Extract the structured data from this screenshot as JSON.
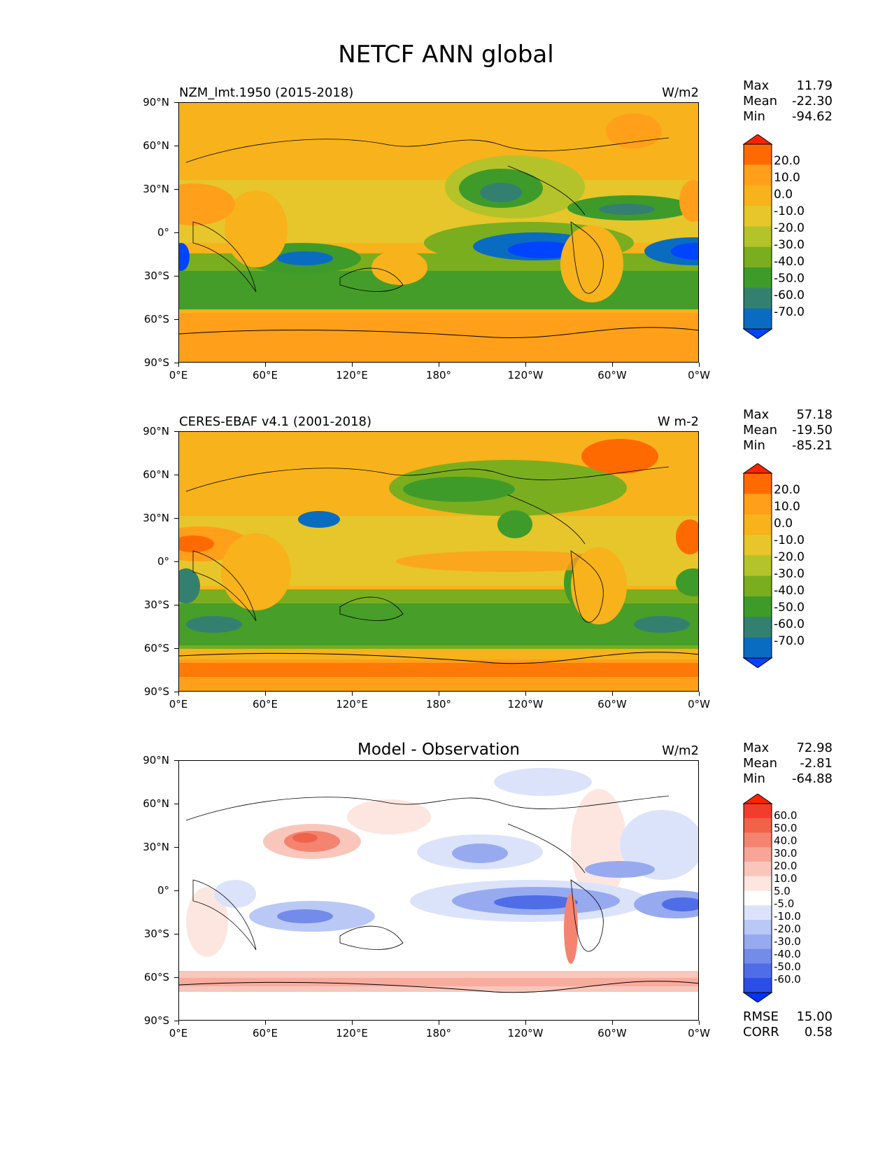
{
  "figure_title": "NETCF ANN global",
  "axes": {
    "lat_ticks": [
      "90°N",
      "60°N",
      "30°N",
      "0°",
      "30°S",
      "60°S",
      "90°S"
    ],
    "lon_ticks": [
      "0°E",
      "60°E",
      "120°E",
      "180°",
      "120°W",
      "60°W",
      "0°W"
    ]
  },
  "panels": [
    {
      "title": "NZM_lmt.1950 (2015-2018)",
      "units": "W/m2",
      "stats": [
        {
          "label": "Max",
          "value": "11.79"
        },
        {
          "label": "Mean",
          "value": "-22.30"
        },
        {
          "label": "Min",
          "value": "-94.62"
        }
      ],
      "colorbar": {
        "labels": [
          "20.0",
          "10.0",
          "0.0",
          "-10.0",
          "-20.0",
          "-30.0",
          "-40.0",
          "-50.0",
          "-60.0",
          "-70.0"
        ],
        "colors": [
          "#ff2200",
          "#ff6a00",
          "#ff9f1a",
          "#f7b21c",
          "#e6c62a",
          "#b4c32a",
          "#7aae1e",
          "#3e9b2a",
          "#348070",
          "#0a6cc0",
          "#0044ff"
        ]
      }
    },
    {
      "title": "CERES-EBAF v4.1 (2001-2018)",
      "units": "W m-2",
      "stats": [
        {
          "label": "Max",
          "value": "57.18"
        },
        {
          "label": "Mean",
          "value": "-19.50"
        },
        {
          "label": "Min",
          "value": "-85.21"
        }
      ],
      "colorbar": {
        "labels": [
          "20.0",
          "10.0",
          "0.0",
          "-10.0",
          "-20.0",
          "-30.0",
          "-40.0",
          "-50.0",
          "-60.0",
          "-70.0"
        ],
        "colors": [
          "#ff2200",
          "#ff6a00",
          "#ff9f1a",
          "#f7b21c",
          "#e6c62a",
          "#b4c32a",
          "#7aae1e",
          "#3e9b2a",
          "#348070",
          "#0a6cc0",
          "#0044ff"
        ]
      }
    },
    {
      "title": "Model - Observation",
      "units": "W/m2",
      "stats": [
        {
          "label": "Max",
          "value": "72.98"
        },
        {
          "label": "Mean",
          "value": "-2.81"
        },
        {
          "label": "Min",
          "value": "-64.88"
        }
      ],
      "colorbar": {
        "labels": [
          "60.0",
          "50.0",
          "40.0",
          "30.0",
          "20.0",
          "10.0",
          "5.0",
          "-5.0",
          "-10.0",
          "-20.0",
          "-30.0",
          "-40.0",
          "-50.0",
          "-60.0"
        ],
        "colors": [
          "#ff2200",
          "#f33c2e",
          "#f0624a",
          "#f48470",
          "#f6a596",
          "#f9c6bb",
          "#fde6e0",
          "#ffffff",
          "#dbe3fb",
          "#bac8f6",
          "#97aaf0",
          "#738cea",
          "#4f6de6",
          "#2a4ee6",
          "#0033ff"
        ]
      },
      "error_stats": [
        {
          "label": "RMSE",
          "value": "15.00"
        },
        {
          "label": "CORR",
          "value": "0.58"
        }
      ]
    }
  ]
}
